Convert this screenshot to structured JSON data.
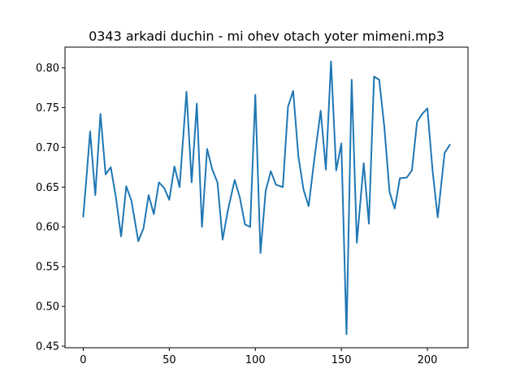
{
  "chart_data": {
    "type": "line",
    "title": "0343 arkadi duchin - mi ohev otach yoter mimeni.mp3",
    "xlabel": "",
    "ylabel": "",
    "xlim": [
      -10.6,
      223.6
    ],
    "ylim": [
      0.448,
      0.826
    ],
    "grid": false,
    "x_ticks": [
      0,
      50,
      100,
      150,
      200
    ],
    "x_tick_labels": [
      "0",
      "50",
      "100",
      "150",
      "200"
    ],
    "y_ticks": [
      0.45,
      0.5,
      0.55,
      0.6,
      0.65,
      0.7,
      0.75,
      0.8
    ],
    "y_tick_labels": [
      "0.45",
      "0.50",
      "0.55",
      "0.60",
      "0.65",
      "0.70",
      "0.75",
      "0.80"
    ],
    "series": [
      {
        "color": "#1f77b4",
        "x": [
          0,
          2,
          4,
          7,
          10,
          13,
          16,
          19,
          22,
          25,
          28,
          32,
          35,
          38,
          41,
          44,
          47,
          50,
          53,
          56,
          60,
          63,
          66,
          69,
          72,
          75,
          78,
          81,
          84,
          88,
          91,
          94,
          97,
          100,
          103,
          106,
          109,
          112,
          116,
          119,
          122,
          125,
          128,
          131,
          134,
          138,
          141,
          144,
          147,
          150,
          153,
          156,
          159,
          163,
          166,
          169,
          172,
          175,
          178,
          181,
          184,
          188,
          191,
          194,
          197,
          200,
          203,
          206,
          210,
          213
        ],
        "y": [
          0.613,
          0.665,
          0.72,
          0.64,
          0.742,
          0.666,
          0.675,
          0.637,
          0.588,
          0.651,
          0.633,
          0.582,
          0.598,
          0.64,
          0.616,
          0.656,
          0.649,
          0.634,
          0.676,
          0.65,
          0.77,
          0.656,
          0.755,
          0.6,
          0.698,
          0.672,
          0.656,
          0.584,
          0.62,
          0.659,
          0.637,
          0.603,
          0.6,
          0.766,
          0.567,
          0.645,
          0.67,
          0.653,
          0.65,
          0.751,
          0.771,
          0.689,
          0.647,
          0.626,
          0.68,
          0.746,
          0.672,
          0.808,
          0.671,
          0.705,
          0.465,
          0.785,
          0.58,
          0.68,
          0.604,
          0.789,
          0.785,
          0.725,
          0.644,
          0.623,
          0.661,
          0.662,
          0.671,
          0.732,
          0.742,
          0.749,
          0.671,
          0.612,
          0.693,
          0.703
        ]
      }
    ]
  }
}
